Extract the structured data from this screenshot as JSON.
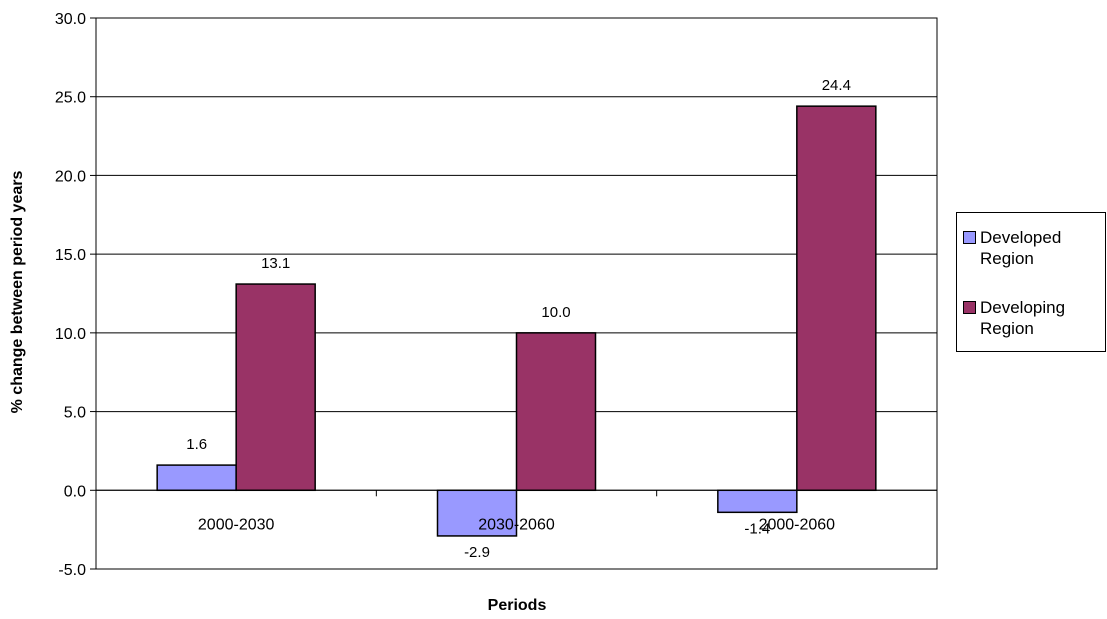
{
  "chart_data": {
    "type": "bar",
    "title": "",
    "xlabel": "Periods",
    "ylabel": "% change between period years",
    "categories": [
      "2000-2030",
      "2030-2060",
      "2000-2060"
    ],
    "series": [
      {
        "name": "Developed Region",
        "values": [
          1.6,
          -2.9,
          -1.4
        ],
        "color": "#9999ff",
        "labels": [
          "1.6",
          "-2.9",
          "-1.4"
        ]
      },
      {
        "name": "Developing Region",
        "values": [
          13.1,
          10.0,
          24.4
        ],
        "color": "#993366",
        "labels": [
          "13.1",
          "10.0",
          "24.4"
        ]
      }
    ],
    "ylim": [
      -5,
      30
    ],
    "yticks": [
      "-5.0",
      "0.0",
      "5.0",
      "10.0",
      "15.0",
      "20.0",
      "25.0",
      "30.0"
    ],
    "grid": true,
    "legend_position": "right"
  }
}
